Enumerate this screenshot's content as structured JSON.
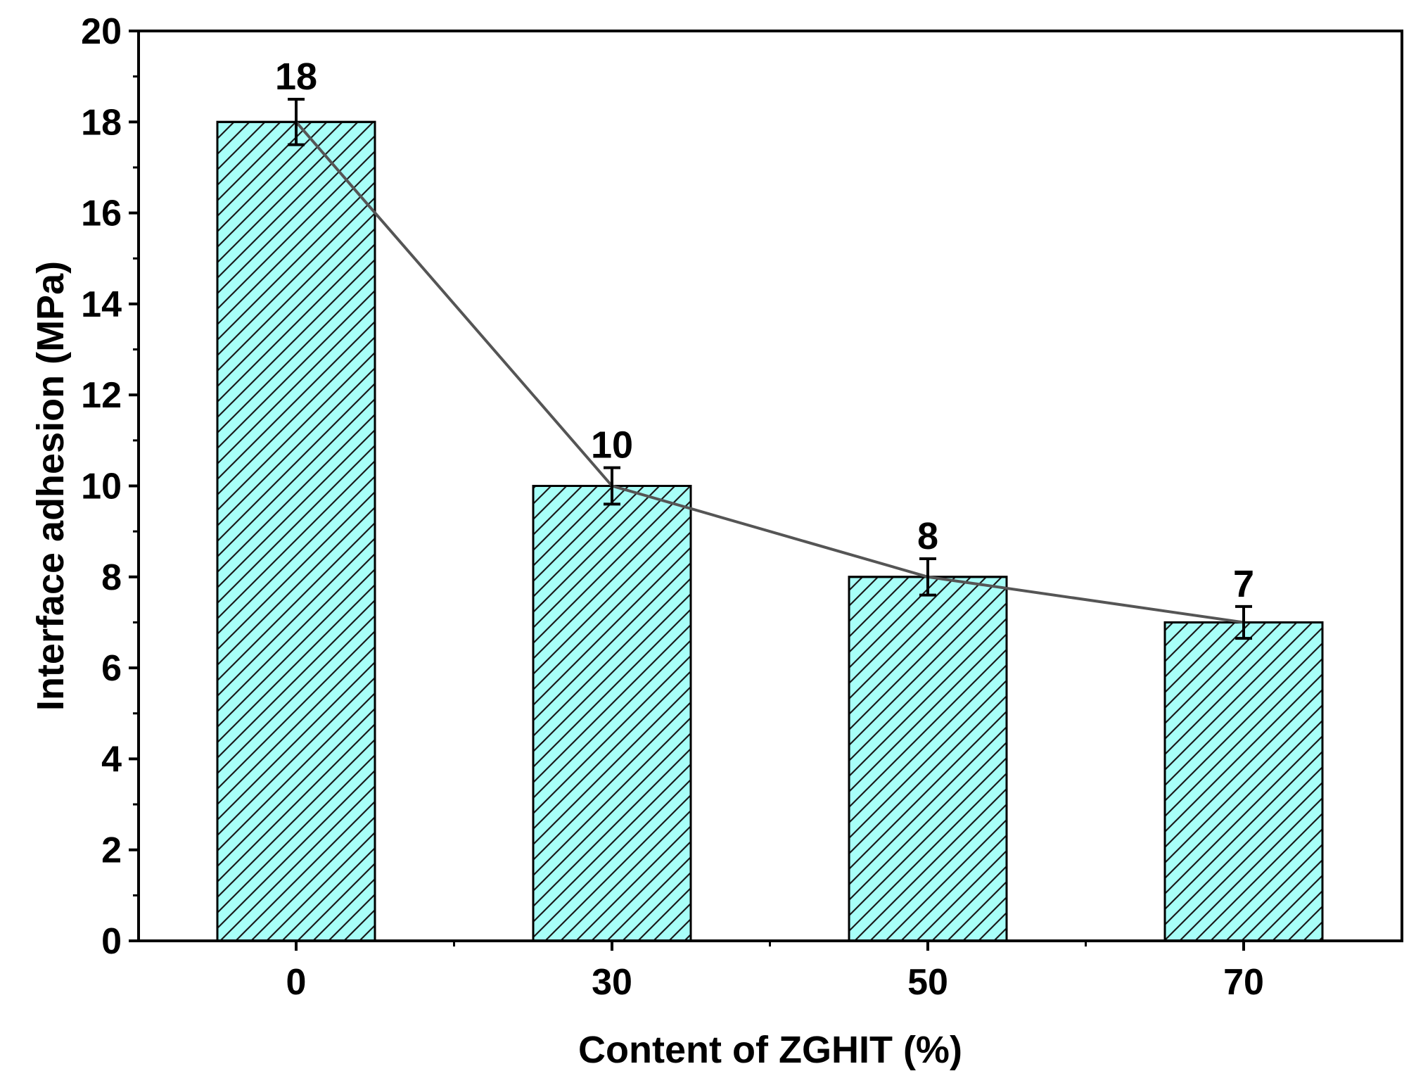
{
  "chart_data": {
    "type": "bar",
    "xlabel": "Content of ZGHIT (%)",
    "ylabel": "Interface adhesion (MPa)",
    "categories": [
      "0",
      "30",
      "50",
      "70"
    ],
    "values": [
      18,
      10,
      8,
      7
    ],
    "errors": [
      0.5,
      0.4,
      0.4,
      0.35
    ],
    "data_labels": [
      "18",
      "10",
      "8",
      "7"
    ],
    "ylim": [
      0,
      20
    ],
    "yticks": [
      "0",
      "2",
      "4",
      "6",
      "8",
      "10",
      "12",
      "14",
      "16",
      "18",
      "20"
    ],
    "grid": false,
    "legend": "none",
    "overlay": "line connecting bar tops",
    "colors": {
      "bar_fill": "#a8fff8",
      "hatch": "#1a1a1a",
      "trend_line": "#555555",
      "axis": "#000000"
    }
  }
}
